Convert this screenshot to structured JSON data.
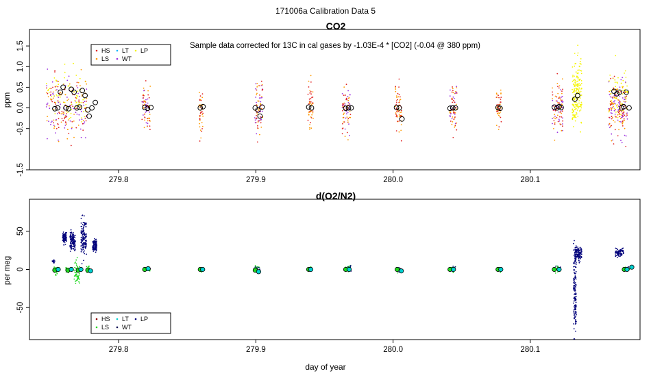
{
  "figure": {
    "title": "171006a   Calibration Data 5",
    "xlabel": "day of year"
  },
  "colors": {
    "HS": "#e02020",
    "LS": "#ff9a00",
    "LT": "#00b4ff",
    "WT": "#9b30e0",
    "LP": "#f5f500",
    "LS_o2": "#1ed81e",
    "LT_o2": "#00d0d0",
    "LP_o2": "#00007a",
    "HS_o2": "#8b0000",
    "WT_o2": "#000050"
  },
  "chart_data": [
    {
      "type": "scatter",
      "title": "CO2",
      "subtitle": "Sample data corrected for 13C in cal gases by -1.03E-4 * [CO2] (-0.04 @ 380 ppm)",
      "ylabel": "ppm",
      "xlim": [
        279.735,
        280.18
      ],
      "ylim": [
        -1.5,
        1.9
      ],
      "xticks": [
        279.8,
        279.9,
        280.0,
        280.1
      ],
      "xtick_labels": [
        "279.8",
        "279.9",
        "280.0",
        "280.1"
      ],
      "yticks": [
        -1.5,
        -0.5,
        0.0,
        0.5,
        1.0,
        1.5
      ],
      "ytick_labels": [
        "-1.5",
        "-0.5",
        "0.0",
        "0.5",
        "1.0",
        "1.5"
      ],
      "legend": {
        "position": "top-left",
        "entries": [
          {
            "key": "HS",
            "label": "HS"
          },
          {
            "key": "LT",
            "label": "LT"
          },
          {
            "key": "LP",
            "label": "LP"
          },
          {
            "key": "LS",
            "label": "LS"
          },
          {
            "key": "WT",
            "label": "WT"
          }
        ]
      },
      "clusters": [
        {
          "x": 279.762,
          "width": 0.03,
          "series": [
            "LS",
            "WT",
            "HS",
            "LP"
          ],
          "spread": 0.75,
          "n": 260
        },
        {
          "x": 279.82,
          "width": 0.006,
          "series": [
            "LS",
            "WT",
            "HS"
          ],
          "spread": 0.45,
          "n": 70
        },
        {
          "x": 279.86,
          "width": 0.003,
          "series": [
            "LS",
            "HS"
          ],
          "spread": 0.55,
          "n": 40
        },
        {
          "x": 279.902,
          "width": 0.006,
          "series": [
            "LS",
            "WT",
            "HS"
          ],
          "spread": 0.65,
          "n": 80
        },
        {
          "x": 279.94,
          "width": 0.004,
          "series": [
            "LS",
            "HS"
          ],
          "spread": 0.6,
          "n": 45
        },
        {
          "x": 279.966,
          "width": 0.006,
          "series": [
            "LS",
            "WT",
            "HS"
          ],
          "spread": 0.55,
          "n": 75
        },
        {
          "x": 280.004,
          "width": 0.005,
          "series": [
            "LS",
            "HS"
          ],
          "spread": 0.55,
          "n": 60
        },
        {
          "x": 280.044,
          "width": 0.005,
          "series": [
            "LS",
            "WT",
            "HS"
          ],
          "spread": 0.5,
          "n": 70
        },
        {
          "x": 280.077,
          "width": 0.004,
          "series": [
            "LS",
            "HS"
          ],
          "spread": 0.45,
          "n": 45
        },
        {
          "x": 280.12,
          "width": 0.008,
          "series": [
            "LS",
            "WT",
            "HS"
          ],
          "spread": 0.55,
          "n": 90
        },
        {
          "x": 280.134,
          "width": 0.007,
          "series": [
            "LP"
          ],
          "spread": 0.75,
          "n": 180
        },
        {
          "x": 280.164,
          "width": 0.014,
          "series": [
            "LS",
            "WT",
            "HS",
            "LP"
          ],
          "spread": 0.6,
          "n": 220
        }
      ],
      "points": [
        {
          "x": 279.7535,
          "y": -0.02
        },
        {
          "x": 279.7555,
          "y": 0.0
        },
        {
          "x": 279.7575,
          "y": 0.38
        },
        {
          "x": 279.7595,
          "y": 0.5
        },
        {
          "x": 279.7615,
          "y": 0.0
        },
        {
          "x": 279.7635,
          "y": -0.02
        },
        {
          "x": 279.7655,
          "y": 0.45
        },
        {
          "x": 279.7675,
          "y": 0.38
        },
        {
          "x": 279.7695,
          "y": 0.0
        },
        {
          "x": 279.7715,
          "y": 0.02
        },
        {
          "x": 279.7735,
          "y": 0.42
        },
        {
          "x": 279.7755,
          "y": 0.3
        },
        {
          "x": 279.7775,
          "y": -0.05
        },
        {
          "x": 279.7785,
          "y": -0.2
        },
        {
          "x": 279.7805,
          "y": 0.0
        },
        {
          "x": 279.783,
          "y": 0.13
        },
        {
          "x": 279.819,
          "y": 0.01
        },
        {
          "x": 279.821,
          "y": -0.01
        },
        {
          "x": 279.8235,
          "y": 0.01
        },
        {
          "x": 279.8595,
          "y": 0.0
        },
        {
          "x": 279.8615,
          "y": 0.03
        },
        {
          "x": 279.8995,
          "y": 0.0
        },
        {
          "x": 279.9015,
          "y": -0.05
        },
        {
          "x": 279.903,
          "y": -0.2
        },
        {
          "x": 279.9045,
          "y": 0.02
        },
        {
          "x": 279.9385,
          "y": 0.02
        },
        {
          "x": 279.9405,
          "y": 0.0
        },
        {
          "x": 279.9655,
          "y": -0.01
        },
        {
          "x": 279.9675,
          "y": 0.0
        },
        {
          "x": 279.9695,
          "y": 0.0
        },
        {
          "x": 280.0025,
          "y": 0.01
        },
        {
          "x": 280.0045,
          "y": 0.0
        },
        {
          "x": 280.0065,
          "y": -0.27
        },
        {
          "x": 280.0415,
          "y": -0.01
        },
        {
          "x": 280.0435,
          "y": 0.0
        },
        {
          "x": 280.0455,
          "y": 0.0
        },
        {
          "x": 280.0765,
          "y": 0.01
        },
        {
          "x": 280.078,
          "y": -0.01
        },
        {
          "x": 280.1175,
          "y": 0.02
        },
        {
          "x": 280.1195,
          "y": 0.0
        },
        {
          "x": 280.121,
          "y": 0.03
        },
        {
          "x": 280.1225,
          "y": 0.01
        },
        {
          "x": 280.1325,
          "y": 0.21
        },
        {
          "x": 280.1345,
          "y": 0.3
        },
        {
          "x": 280.161,
          "y": 0.4
        },
        {
          "x": 280.163,
          "y": 0.34
        },
        {
          "x": 280.165,
          "y": 0.38
        },
        {
          "x": 280.1665,
          "y": 0.0
        },
        {
          "x": 280.168,
          "y": 0.03
        },
        {
          "x": 280.17,
          "y": 0.38
        },
        {
          "x": 280.172,
          "y": 0.0
        }
      ]
    },
    {
      "type": "scatter",
      "title": "d(O2/N2)",
      "ylabel": "per meg",
      "xlim": [
        279.735,
        280.18
      ],
      "ylim": [
        -92,
        92
      ],
      "xticks": [
        279.8,
        279.9,
        280.0,
        280.1
      ],
      "xtick_labels": [
        "279.8",
        "279.9",
        "280.0",
        "280.1"
      ],
      "yticks": [
        -50,
        0,
        50
      ],
      "ytick_labels": [
        "-50",
        "0",
        "50"
      ],
      "legend": {
        "position": "bottom-left",
        "entries": [
          {
            "key": "HS",
            "label": "HS"
          },
          {
            "key": "LT",
            "label": "LT"
          },
          {
            "key": "LP",
            "label": "LP"
          },
          {
            "key": "LS",
            "label": "LS"
          },
          {
            "key": "WT",
            "label": "WT"
          }
        ]
      },
      "clusters": [
        {
          "x": 279.7525,
          "width": 0.002,
          "series": [
            "LP"
          ],
          "center": 10,
          "spread": 2,
          "n": 20
        },
        {
          "x": 279.7605,
          "width": 0.003,
          "series": [
            "LP"
          ],
          "center": 42,
          "spread": 7,
          "n": 80
        },
        {
          "x": 279.7665,
          "width": 0.004,
          "series": [
            "LP"
          ],
          "center": 38,
          "spread": 12,
          "n": 120
        },
        {
          "x": 279.7745,
          "width": 0.004,
          "series": [
            "LP"
          ],
          "center": 40,
          "spread": 22,
          "n": 140
        },
        {
          "x": 279.7825,
          "width": 0.003,
          "series": [
            "LP"
          ],
          "center": 31,
          "spread": 8,
          "n": 90
        },
        {
          "x": 279.7545,
          "width": 0.003,
          "series": [
            "LS"
          ],
          "center": -1,
          "spread": 6,
          "n": 30
        },
        {
          "x": 279.7625,
          "width": 0.002,
          "series": [
            "LS"
          ],
          "center": 0,
          "spread": 4,
          "n": 20
        },
        {
          "x": 279.7695,
          "width": 0.004,
          "series": [
            "LS"
          ],
          "center": -5,
          "spread": 15,
          "n": 60
        },
        {
          "x": 279.7775,
          "width": 0.002,
          "series": [
            "LS"
          ],
          "center": 0,
          "spread": 5,
          "n": 20
        },
        {
          "x": 279.821,
          "width": 0.004,
          "series": [
            "LS",
            "LP"
          ],
          "center": 1,
          "spread": 3,
          "n": 25
        },
        {
          "x": 279.86,
          "width": 0.002,
          "series": [
            "LS"
          ],
          "center": 0,
          "spread": 3,
          "n": 15
        },
        {
          "x": 279.901,
          "width": 0.004,
          "series": [
            "LS",
            "LP"
          ],
          "center": 1,
          "spread": 4,
          "n": 25
        },
        {
          "x": 279.9395,
          "width": 0.002,
          "series": [
            "LS"
          ],
          "center": 0,
          "spread": 3,
          "n": 15
        },
        {
          "x": 279.9675,
          "width": 0.004,
          "series": [
            "LS",
            "LP"
          ],
          "center": 1,
          "spread": 4,
          "n": 25
        },
        {
          "x": 280.0045,
          "width": 0.004,
          "series": [
            "LS",
            "LP"
          ],
          "center": 0,
          "spread": 4,
          "n": 25
        },
        {
          "x": 280.0435,
          "width": 0.004,
          "series": [
            "LS",
            "LP"
          ],
          "center": 1,
          "spread": 4,
          "n": 25
        },
        {
          "x": 280.0775,
          "width": 0.002,
          "series": [
            "LS"
          ],
          "center": 0,
          "spread": 3,
          "n": 15
        },
        {
          "x": 280.12,
          "width": 0.004,
          "series": [
            "LS",
            "LP"
          ],
          "center": 1,
          "spread": 4,
          "n": 30
        },
        {
          "x": 280.1325,
          "width": 0.002,
          "series": [
            "LP"
          ],
          "center": -30,
          "spread": 55,
          "n": 150
        },
        {
          "x": 280.135,
          "width": 0.005,
          "series": [
            "LP"
          ],
          "center": 20,
          "spread": 10,
          "n": 110
        },
        {
          "x": 280.165,
          "width": 0.006,
          "series": [
            "LP"
          ],
          "center": 23,
          "spread": 5,
          "n": 70
        },
        {
          "x": 280.171,
          "width": 0.004,
          "series": [
            "LS",
            "LP"
          ],
          "center": 1,
          "spread": 3,
          "n": 20
        }
      ],
      "points": [
        {
          "x": 279.7535,
          "y": -1,
          "c": "LS"
        },
        {
          "x": 279.756,
          "y": 0,
          "c": "LT"
        },
        {
          "x": 279.763,
          "y": -1,
          "c": "LS"
        },
        {
          "x": 279.7655,
          "y": 0,
          "c": "LT"
        },
        {
          "x": 279.7705,
          "y": -1,
          "c": "LS"
        },
        {
          "x": 279.7725,
          "y": 0,
          "c": "LT"
        },
        {
          "x": 279.7775,
          "y": -1,
          "c": "LS"
        },
        {
          "x": 279.7795,
          "y": -2,
          "c": "LT"
        },
        {
          "x": 279.819,
          "y": 0,
          "c": "LS"
        },
        {
          "x": 279.8215,
          "y": 1,
          "c": "LT"
        },
        {
          "x": 279.8595,
          "y": 0,
          "c": "LS"
        },
        {
          "x": 279.8612,
          "y": 0,
          "c": "LT"
        },
        {
          "x": 279.8995,
          "y": -1,
          "c": "LS"
        },
        {
          "x": 279.902,
          "y": -3,
          "c": "LT"
        },
        {
          "x": 279.9385,
          "y": 0,
          "c": "LS"
        },
        {
          "x": 279.94,
          "y": 0,
          "c": "LT"
        },
        {
          "x": 279.9655,
          "y": 0,
          "c": "LS"
        },
        {
          "x": 279.968,
          "y": 0,
          "c": "LT"
        },
        {
          "x": 280.003,
          "y": 0,
          "c": "LS"
        },
        {
          "x": 280.006,
          "y": -2,
          "c": "LT"
        },
        {
          "x": 280.0415,
          "y": 0,
          "c": "LS"
        },
        {
          "x": 280.044,
          "y": 0,
          "c": "LT"
        },
        {
          "x": 280.0765,
          "y": 0,
          "c": "LS"
        },
        {
          "x": 280.0785,
          "y": 0,
          "c": "LT"
        },
        {
          "x": 280.1175,
          "y": 0,
          "c": "LS"
        },
        {
          "x": 280.121,
          "y": 0,
          "c": "LT"
        },
        {
          "x": 280.1685,
          "y": 0,
          "c": "LS"
        },
        {
          "x": 280.1705,
          "y": 0,
          "c": "LT"
        },
        {
          "x": 280.174,
          "y": 3,
          "c": "LT"
        }
      ]
    }
  ]
}
